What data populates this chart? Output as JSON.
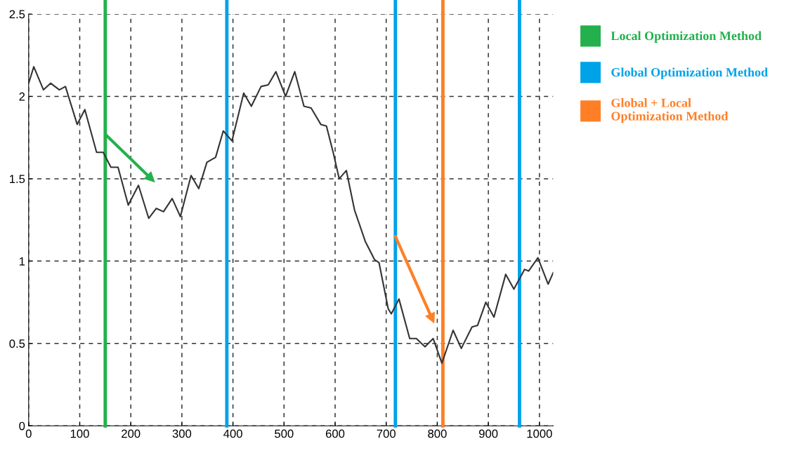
{
  "chart_data": {
    "type": "line",
    "xlim": [
      0,
      1027
    ],
    "ylim": [
      0,
      2.5
    ],
    "xticks": [
      0,
      100,
      200,
      300,
      400,
      500,
      600,
      700,
      800,
      900,
      1000
    ],
    "yticks": [
      0,
      0.5,
      1,
      1.5,
      2,
      2.5
    ],
    "grid": true,
    "legend": "right",
    "line_style": "solid",
    "marker": "none",
    "series": [
      {
        "color": "#333333",
        "x": [
          0,
          10,
          29,
          43,
          60,
          72,
          95,
          110,
          133,
          146,
          161,
          175,
          195,
          215,
          235,
          250,
          264,
          281,
          297,
          318,
          333,
          349,
          366,
          381,
          398,
          421,
          436,
          455,
          469,
          484,
          503,
          521,
          539,
          553,
          572,
          583,
          597,
          608,
          622,
          638,
          659,
          677,
          686,
          704,
          710,
          725,
          746,
          759,
          776,
          792,
          809,
          831,
          847,
          868,
          879,
          895,
          911,
          934,
          950,
          971,
          979,
          997,
          1017,
          1027
        ],
        "values": [
          2.08,
          2.18,
          2.04,
          2.08,
          2.04,
          2.06,
          1.83,
          1.92,
          1.66,
          1.66,
          1.57,
          1.57,
          1.34,
          1.46,
          1.26,
          1.32,
          1.3,
          1.38,
          1.27,
          1.52,
          1.44,
          1.6,
          1.63,
          1.79,
          1.73,
          2.02,
          1.94,
          2.06,
          2.07,
          2.15,
          2.0,
          2.15,
          1.94,
          1.93,
          1.83,
          1.82,
          1.65,
          1.5,
          1.55,
          1.31,
          1.12,
          1.01,
          0.99,
          0.71,
          0.68,
          0.77,
          0.53,
          0.53,
          0.48,
          0.53,
          0.38,
          0.58,
          0.47,
          0.6,
          0.61,
          0.75,
          0.66,
          0.92,
          0.83,
          0.95,
          0.94,
          1.02,
          0.86,
          0.93
        ]
      },
      {
        "type": "line",
        "marker": "triangle",
        "color": "#22b14c",
        "x": [
          150,
          240
        ],
        "values": [
          1.77,
          1.5
        ]
      },
      {
        "type": "line",
        "marker": "triangle",
        "color": "#ff7f27",
        "x": [
          718,
          790
        ],
        "values": [
          1.15,
          0.65
        ]
      }
    ],
    "ref_lines": [
      {
        "axis": "x",
        "value": 150,
        "label": "Local Optimization Method",
        "color": "#22b14c"
      },
      {
        "axis": "x",
        "value": 388,
        "label": "Global Optimization Method",
        "color": "#00a2e8"
      },
      {
        "axis": "x",
        "value": 718,
        "label": null,
        "color": "#00a2e8"
      },
      {
        "axis": "x",
        "value": 811,
        "label": "Global + Local\nOptimization Method",
        "color": "#ff7f27"
      },
      {
        "axis": "x",
        "value": 961,
        "label": null,
        "color": "#00a2e8"
      }
    ]
  }
}
